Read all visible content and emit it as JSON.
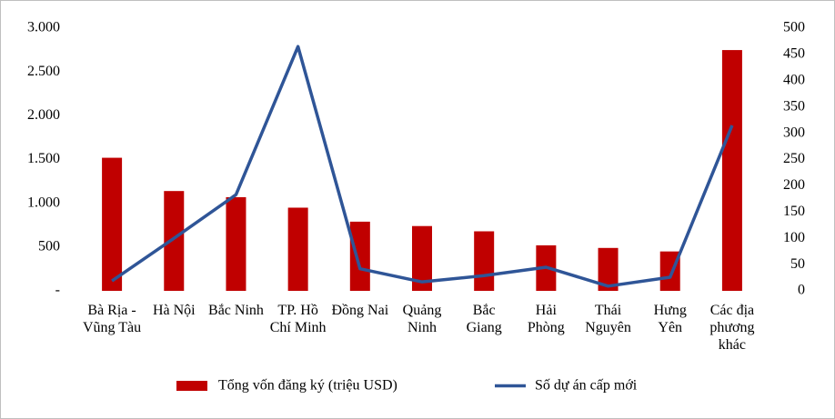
{
  "chart_data": {
    "type": "bar_line",
    "categories": [
      "Bà Rịa - Vũng Tàu",
      "Hà Nội",
      "Bắc Ninh",
      "TP. Hồ Chí Minh",
      "Đồng Nai",
      "Quảng Ninh",
      "Bắc Giang",
      "Hải Phòng",
      "Thái Nguyên",
      "Hưng Yên",
      "Các địa phương khác"
    ],
    "series": [
      {
        "name": "Tổng vốn đăng ký (triệu USD)",
        "color": "#c00000",
        "type": "bar",
        "values": [
          1520,
          1140,
          1070,
          950,
          790,
          740,
          680,
          520,
          490,
          450,
          2750
        ]
      },
      {
        "name": "Số dự án cấp mới",
        "color": "#2f5597",
        "type": "line",
        "axis": "y2",
        "values": [
          19,
          100,
          183,
          465,
          42,
          17,
          29,
          45,
          9,
          26,
          315
        ]
      }
    ],
    "ylim": [
      0,
      3000
    ],
    "yticks": [
      {
        "value": 0,
        "label": "-"
      },
      500,
      {
        "value": 1000,
        "label": "1.000"
      },
      {
        "value": 1500,
        "label": "1.500"
      },
      {
        "value": 2000,
        "label": "2.000"
      },
      {
        "value": 2500,
        "label": "2.500"
      },
      {
        "value": 3000,
        "label": "3.000"
      }
    ],
    "y2lim": [
      0,
      500
    ],
    "y2ticks": [
      0,
      50,
      100,
      150,
      200,
      250,
      300,
      350,
      400,
      450,
      500
    ]
  }
}
